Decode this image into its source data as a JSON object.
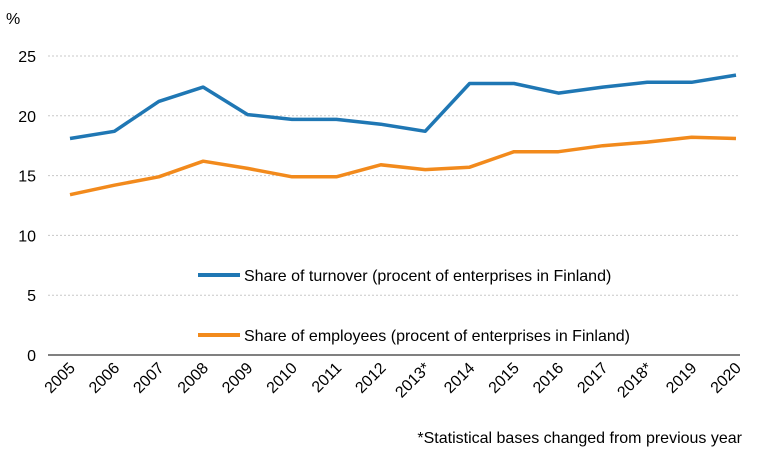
{
  "chart_data": {
    "type": "line",
    "unit_label": "%",
    "categories": [
      "2005",
      "2006",
      "2007",
      "2008",
      "2009",
      "2010",
      "2011",
      "2012",
      "2013*",
      "2014",
      "2015",
      "2016",
      "2017",
      "2018*",
      "2019",
      "2020"
    ],
    "ylim": [
      0,
      25
    ],
    "yticks": [
      0,
      5,
      10,
      15,
      20,
      25
    ],
    "grid": true,
    "legend_position": "inside-lower-center",
    "series": [
      {
        "name": "Share of turnover (procent of enterprises in Finland)",
        "color": "#1f77b4",
        "values": [
          18.1,
          18.7,
          21.2,
          22.4,
          20.1,
          19.7,
          19.7,
          19.3,
          18.7,
          22.7,
          22.7,
          21.9,
          22.4,
          22.8,
          22.8,
          23.4
        ]
      },
      {
        "name": "Share of employees (procent of enterprises in Finland)",
        "color": "#f28a1c",
        "values": [
          13.4,
          14.2,
          14.9,
          16.2,
          15.6,
          14.9,
          14.9,
          15.9,
          15.5,
          15.7,
          17.0,
          17.0,
          17.5,
          17.8,
          18.2,
          18.1
        ]
      }
    ],
    "footnote": "*Statistical bases changed from previous year"
  }
}
